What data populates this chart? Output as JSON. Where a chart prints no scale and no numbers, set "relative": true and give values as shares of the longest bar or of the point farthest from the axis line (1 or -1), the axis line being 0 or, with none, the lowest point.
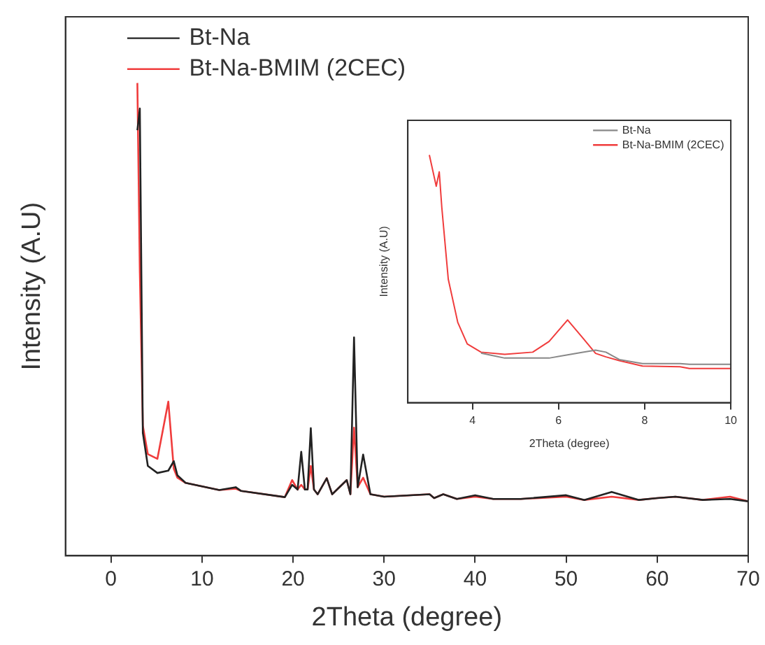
{
  "chart_data": [
    {
      "type": "line",
      "xlabel": "2Theta (degree)",
      "ylabel": "Intensity (A.U)",
      "relative": true,
      "xlim": [
        -5,
        70
      ],
      "xticks": [
        0,
        10,
        20,
        30,
        40,
        50,
        60,
        70
      ],
      "legend": "top left",
      "grid": false,
      "tick_labels": "x",
      "marker": "none",
      "series": [
        {
          "name": "Bt-Na",
          "color": "#222222",
          "x": [
            2.9,
            3.17,
            3.5,
            4.05,
            5.1,
            6.3,
            6.9,
            7.3,
            8.2,
            11.9,
            13.7,
            14.3,
            19.1,
            19.9,
            20.5,
            20.9,
            21.3,
            21.6,
            21.95,
            22.3,
            22.7,
            23.7,
            24.3,
            25.9,
            26.3,
            26.7,
            27.1,
            27.7,
            28.5,
            30,
            35,
            35.5,
            36.5,
            38,
            40,
            42,
            45,
            50,
            52,
            55,
            58,
            60,
            62,
            65,
            68,
            70
          ],
          "values": [
            0.9,
            0.946,
            0.26,
            0.19,
            0.175,
            0.18,
            0.2,
            0.17,
            0.154,
            0.139,
            0.145,
            0.137,
            0.124,
            0.15,
            0.14,
            0.22,
            0.14,
            0.14,
            0.27,
            0.14,
            0.13,
            0.164,
            0.13,
            0.16,
            0.13,
            0.462,
            0.145,
            0.214,
            0.13,
            0.125,
            0.13,
            0.122,
            0.13,
            0.12,
            0.128,
            0.12,
            0.12,
            0.128,
            0.118,
            0.135,
            0.118,
            0.122,
            0.125,
            0.118,
            0.12,
            0.115
          ]
        },
        {
          "name": "Bt-Na-BMIM (2CEC)",
          "color": "#f03c3c",
          "x": [
            2.9,
            3.17,
            3.5,
            4.05,
            5.1,
            6.3,
            6.9,
            7.3,
            8.2,
            11.9,
            13.7,
            14.3,
            19.1,
            19.9,
            20.5,
            20.9,
            21.3,
            21.6,
            21.95,
            22.3,
            22.7,
            23.7,
            24.3,
            25.9,
            26.3,
            26.7,
            27.1,
            27.7,
            28.5,
            30,
            35,
            35.5,
            36.5,
            38,
            40,
            42,
            45,
            50,
            52,
            55,
            58,
            60,
            62,
            65,
            68,
            70
          ],
          "values": [
            1,
            0.6,
            0.275,
            0.215,
            0.205,
            0.326,
            0.184,
            0.165,
            0.154,
            0.139,
            0.142,
            0.137,
            0.124,
            0.16,
            0.14,
            0.15,
            0.14,
            0.14,
            0.19,
            0.14,
            0.13,
            0.164,
            0.13,
            0.16,
            0.13,
            0.271,
            0.145,
            0.165,
            0.13,
            0.125,
            0.13,
            0.122,
            0.13,
            0.12,
            0.125,
            0.12,
            0.12,
            0.125,
            0.118,
            0.125,
            0.118,
            0.122,
            0.125,
            0.118,
            0.125,
            0.115
          ]
        }
      ]
    },
    {
      "type": "line",
      "xlabel": "2Theta (degree)",
      "ylabel": "Intensity (A.U)",
      "relative": true,
      "xlim": [
        2.5,
        10
      ],
      "xticks": [
        4,
        6,
        8,
        10
      ],
      "legend": "top right",
      "grid": false,
      "tick_labels": "x",
      "marker": "none",
      "series": [
        {
          "name": "Bt-Na",
          "color": "#888888",
          "x": [
            4.2,
            4.75,
            5.4,
            5.78,
            6.21,
            6.54,
            6.86,
            7.1,
            7.41,
            7.95,
            8.82,
            9.04,
            10
          ],
          "values": [
            0.2,
            0.18,
            0.18,
            0.18,
            0.193,
            0.203,
            0.212,
            0.204,
            0.174,
            0.158,
            0.158,
            0.155,
            0.155
          ]
        },
        {
          "name": "Bt-Na-BMIM (2CEC)",
          "color": "#f03c3c",
          "x": [
            3,
            3.16,
            3.23,
            3.29,
            3.44,
            3.66,
            3.88,
            4.2,
            4.75,
            5.4,
            5.78,
            6.21,
            6.54,
            6.86,
            7.1,
            7.41,
            7.95,
            8.82,
            9.04,
            10
          ],
          "values": [
            1,
            0.874,
            0.932,
            0.787,
            0.498,
            0.324,
            0.237,
            0.204,
            0.195,
            0.204,
            0.247,
            0.334,
            0.266,
            0.199,
            0.185,
            0.17,
            0.148,
            0.145,
            0.138,
            0.138
          ]
        }
      ]
    }
  ]
}
